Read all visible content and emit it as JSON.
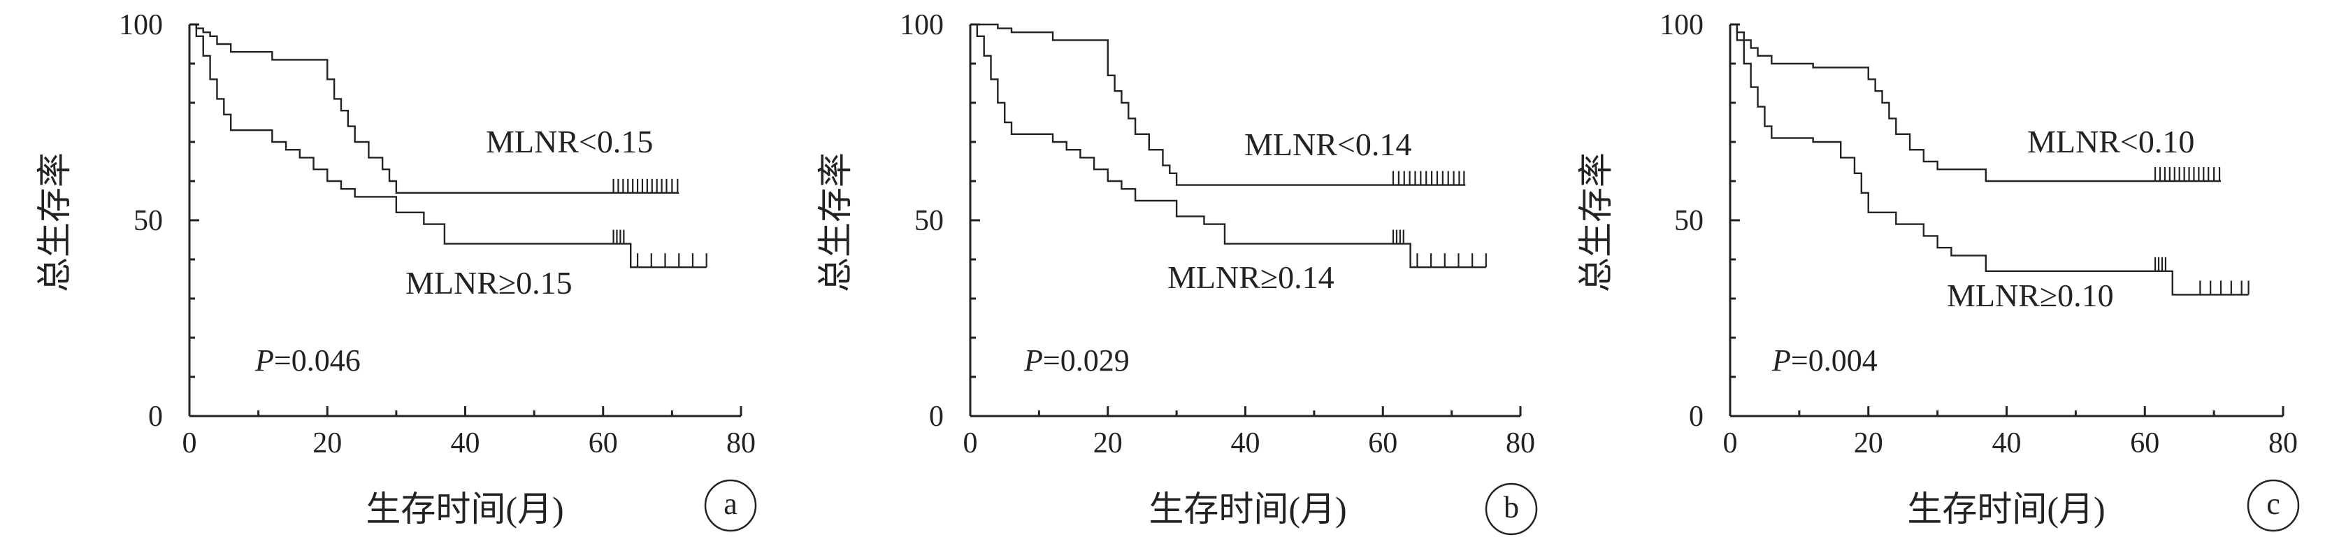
{
  "figure_panels": [
    "a",
    "b",
    "c"
  ],
  "chart_data": [
    {
      "type": "line",
      "panel_label": "a",
      "xlabel": "生存时间(月)",
      "ylabel": "总生存率",
      "xlim": [
        0,
        80
      ],
      "ylim": [
        0,
        100
      ],
      "x_ticks": [
        0,
        20,
        40,
        60,
        80
      ],
      "y_ticks": [
        0,
        50,
        100
      ],
      "p_value": "P=0.046",
      "series": [
        {
          "name": "MLNR<0.15",
          "x": [
            0,
            1,
            2,
            3,
            4,
            6,
            8,
            12,
            19,
            20,
            21,
            22,
            23,
            24,
            26,
            28,
            29,
            30,
            71
          ],
          "y": [
            100,
            99,
            98,
            97,
            95,
            93,
            93,
            91,
            91,
            86,
            81,
            78,
            74,
            70,
            66,
            63,
            60,
            57,
            57
          ],
          "censored_x": [
            61.5,
            62.2,
            62.9,
            63.6,
            64.3,
            65,
            65.7,
            66.4,
            67.1,
            67.8,
            68.5,
            69.2,
            70,
            70.8
          ]
        },
        {
          "name": "MLNR≥0.15",
          "x": [
            0,
            1,
            2,
            3,
            4,
            5,
            6,
            12,
            14,
            16,
            18,
            20,
            22,
            24,
            30,
            34,
            37,
            63,
            64,
            75
          ],
          "y": [
            100,
            97,
            92,
            86,
            81,
            77,
            73,
            70,
            68,
            66,
            63,
            60,
            58,
            56,
            52,
            49,
            44,
            44,
            38,
            38
          ],
          "censored_x": [
            61.5,
            62,
            62.5,
            63,
            65,
            67,
            69,
            71,
            73,
            75
          ]
        }
      ]
    },
    {
      "type": "line",
      "panel_label": "b",
      "xlabel": "生存时间(月)",
      "ylabel": "总生存率",
      "xlim": [
        0,
        80
      ],
      "ylim": [
        0,
        100
      ],
      "x_ticks": [
        0,
        20,
        40,
        60,
        80
      ],
      "y_ticks": [
        0,
        50,
        100
      ],
      "p_value": "P=0.029",
      "series": [
        {
          "name": "MLNR<0.14",
          "x": [
            0,
            2,
            4,
            6,
            12,
            18,
            20,
            21,
            22,
            23,
            24,
            26,
            28,
            29,
            30,
            72
          ],
          "y": [
            100,
            100,
            99,
            98,
            96,
            96,
            87,
            83,
            80,
            76,
            72,
            68,
            64,
            62,
            59,
            59
          ],
          "censored_x": [
            61.5,
            62.3,
            63.1,
            63.9,
            64.7,
            65.5,
            66.3,
            67.1,
            67.9,
            68.7,
            69.5,
            70.3,
            71.1,
            71.8
          ]
        },
        {
          "name": "MLNR≥0.14",
          "x": [
            0,
            1,
            2,
            3,
            4,
            5,
            6,
            12,
            14,
            16,
            18,
            20,
            22,
            24,
            30,
            34,
            37,
            63,
            64,
            75
          ],
          "y": [
            100,
            97,
            92,
            86,
            80,
            75,
            72,
            70,
            68,
            66,
            63,
            60,
            58,
            55,
            51,
            49,
            44,
            44,
            38,
            38
          ],
          "censored_x": [
            61.5,
            62,
            62.5,
            63,
            65,
            67,
            69,
            71,
            73,
            75
          ]
        }
      ]
    },
    {
      "type": "line",
      "panel_label": "c",
      "xlabel": "生存时间(月)",
      "ylabel": "总生存率",
      "xlim": [
        0,
        80
      ],
      "ylim": [
        0,
        100
      ],
      "x_ticks": [
        0,
        20,
        40,
        60,
        80
      ],
      "y_ticks": [
        0,
        50,
        100
      ],
      "p_value": "P=0.004",
      "series": [
        {
          "name": "MLNR<0.10",
          "x": [
            0,
            1,
            2,
            3,
            4,
            6,
            12,
            19,
            20,
            21,
            22,
            23,
            24,
            26,
            28,
            30,
            37,
            71
          ],
          "y": [
            100,
            98,
            96,
            94,
            92,
            90,
            89,
            89,
            86,
            83,
            80,
            76,
            72,
            68,
            65,
            63,
            60,
            60
          ],
          "censored_x": [
            61.5,
            62.2,
            62.9,
            63.6,
            64.3,
            65,
            65.7,
            66.4,
            67.1,
            67.8,
            68.5,
            69.2,
            70,
            70.8
          ]
        },
        {
          "name": "MLNR≥0.10",
          "x": [
            0,
            1,
            2,
            3,
            4,
            5,
            6,
            12,
            16,
            18,
            19,
            20,
            24,
            28,
            30,
            32,
            37,
            63,
            64,
            75
          ],
          "y": [
            100,
            96,
            90,
            84,
            79,
            74,
            71,
            70,
            66,
            62,
            57,
            52,
            49,
            46,
            43,
            41,
            37,
            37,
            31,
            31
          ],
          "censored_x": [
            61.5,
            62,
            62.5,
            63,
            68,
            69.5,
            71,
            72.5,
            74,
            75
          ]
        }
      ]
    }
  ]
}
